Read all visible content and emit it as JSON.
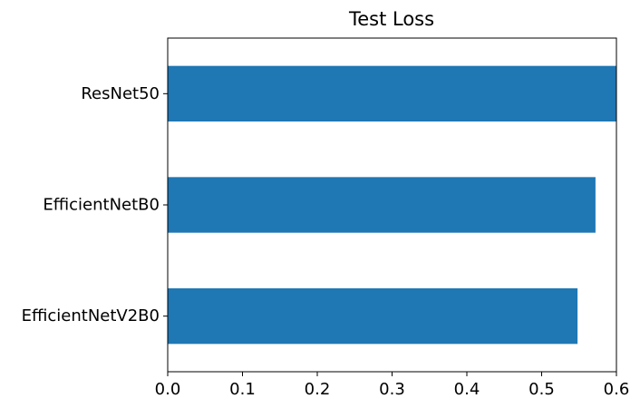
{
  "chart_data": {
    "type": "bar",
    "orientation": "horizontal",
    "title": "Test Loss",
    "xlabel": "",
    "ylabel": "",
    "categories": [
      "EfficientNetV2B0",
      "EfficientNetB0",
      "ResNet50"
    ],
    "values": [
      0.548,
      0.572,
      0.6
    ],
    "xlim": [
      0,
      0.6
    ],
    "xticks": [
      "0.0",
      "0.1",
      "0.2",
      "0.3",
      "0.4",
      "0.5",
      "0.6"
    ],
    "bar_color": "#1f77b4",
    "grid": false,
    "legend": "none"
  }
}
